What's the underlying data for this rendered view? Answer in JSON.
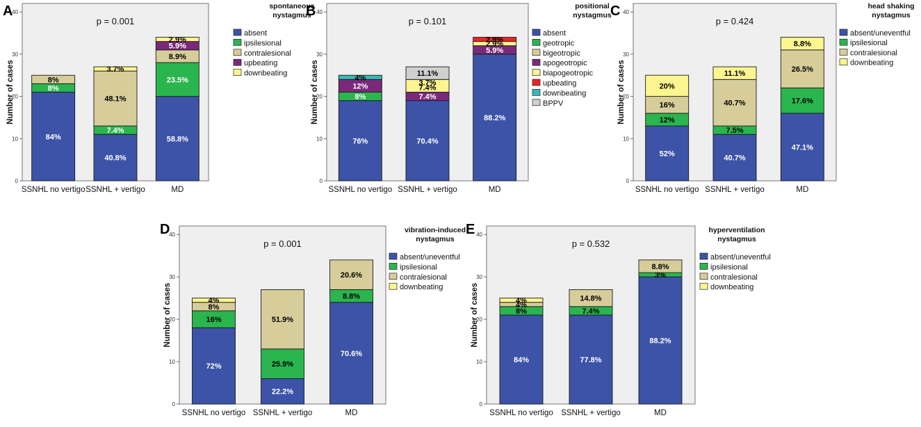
{
  "colors": {
    "plot_bg": "#efefef",
    "bar_stroke": "#1a1a1a",
    "absent": "#3c53a8",
    "ipsilesional": "#2bb54e",
    "geotropic": "#2bb54e",
    "contralesional": "#d6cd9a",
    "bigeotropic": "#d6cd9a",
    "upbeating_purple": "#7b2a7b",
    "apogeotropic": "#7b2a7b",
    "downbeating_yellow": "#fcf590",
    "biapogeotropic": "#fcf590",
    "upbeating_red": "#ec2427",
    "downbeating_teal": "#3ab9b7",
    "bppv": "#cfcfcf"
  },
  "chart_data": [
    {
      "panel_letter": "A",
      "type": "bar",
      "stacked": true,
      "title": "spontaneous\nnystagmus",
      "annotation": "p = 0.001",
      "ylabel": "Number of cases",
      "ylim": [
        0,
        42
      ],
      "yticks": [
        "0",
        "10",
        "20",
        "30",
        "40"
      ],
      "categories": [
        "SSNHL no vertigo",
        "SSNHL + vertigo",
        "MD"
      ],
      "series": [
        {
          "name": "absent",
          "color": "#3c53a8",
          "values": [
            21,
            11,
            20
          ],
          "labels": [
            "84%",
            "40.8%",
            "58.8%"
          ],
          "label_color": "#ffffff"
        },
        {
          "name": "ipsilesional",
          "color": "#2bb54e",
          "values": [
            2,
            2,
            8
          ],
          "labels": [
            "8%",
            "7.4%",
            "23.5%"
          ],
          "label_color": "#ffffff"
        },
        {
          "name": "contralesional",
          "color": "#d6cd9a",
          "values": [
            2,
            13,
            3
          ],
          "labels": [
            "8%",
            "48.1%",
            "8.9%"
          ],
          "label_color": "#000000"
        },
        {
          "name": "upbeating",
          "color": "#7b2a7b",
          "values": [
            0,
            0,
            2
          ],
          "labels": [
            "",
            "",
            "5.9%"
          ],
          "label_color": "#ffffff"
        },
        {
          "name": "downbeating",
          "color": "#fcf590",
          "values": [
            0,
            1,
            1
          ],
          "labels": [
            "",
            "3.7%",
            "2.9%"
          ],
          "label_color": "#000000"
        }
      ]
    },
    {
      "panel_letter": "B",
      "type": "bar",
      "stacked": true,
      "title": "positional\nnystagmus",
      "annotation": "p = 0.101",
      "ylabel": "Number of cases",
      "ylim": [
        0,
        42
      ],
      "yticks": [
        "0",
        "10",
        "20",
        "30",
        "40"
      ],
      "categories": [
        "SSNHL no vertigo",
        "SSNHL + vertigo",
        "MD"
      ],
      "series": [
        {
          "name": "absent",
          "color": "#3c53a8",
          "values": [
            19,
            19,
            30
          ],
          "labels": [
            "76%",
            "70.4%",
            "88.2%"
          ],
          "label_color": "#ffffff"
        },
        {
          "name": "geotropic",
          "color": "#2bb54e",
          "values": [
            2,
            0,
            0
          ],
          "labels": [
            "8%",
            "",
            ""
          ],
          "label_color": "#ffffff"
        },
        {
          "name": "bigeotropic",
          "color": "#d6cd9a",
          "values": [
            0,
            0,
            0
          ],
          "labels": [
            "",
            "",
            ""
          ],
          "label_color": "#000000"
        },
        {
          "name": "apogeotropic",
          "color": "#7b2a7b",
          "values": [
            3,
            2,
            2
          ],
          "labels": [
            "12%",
            "7.4%",
            "5.9%"
          ],
          "label_color": "#ffffff"
        },
        {
          "name": "biapogeotropic",
          "color": "#fcf590",
          "values": [
            0,
            3,
            1
          ],
          "labels": [
            "",
            "7.4%|3.7%",
            "2.9%"
          ],
          "label_color": "#000000"
        },
        {
          "name": "upbeating",
          "color": "#ec2427",
          "values": [
            0,
            0,
            1
          ],
          "labels": [
            "",
            "",
            "2.9%"
          ],
          "label_color": "#000000"
        },
        {
          "name": "downbeating",
          "color": "#3ab9b7",
          "values": [
            1,
            0,
            0
          ],
          "labels": [
            "4%",
            "",
            ""
          ],
          "label_color": "#000000"
        },
        {
          "name": "BPPV",
          "color": "#cfcfcf",
          "values": [
            0,
            3,
            0
          ],
          "labels": [
            "",
            "11.1%",
            ""
          ],
          "label_color": "#000000"
        }
      ]
    },
    {
      "panel_letter": "C",
      "type": "bar",
      "stacked": true,
      "title": "head shaking\nnystagmus",
      "annotation": "p = 0.424",
      "ylabel": "Number of cases",
      "ylim": [
        0,
        42
      ],
      "yticks": [
        "0",
        "10",
        "20",
        "30",
        "40"
      ],
      "categories": [
        "SSNHL no vertigo",
        "SSNHL + vertigo",
        "MD"
      ],
      "series": [
        {
          "name": "absent/uneventful",
          "color": "#3c53a8",
          "values": [
            13,
            11,
            16
          ],
          "labels": [
            "52%",
            "40.7%",
            "47.1%"
          ],
          "label_color": "#ffffff"
        },
        {
          "name": "ipsilesional",
          "color": "#2bb54e",
          "values": [
            3,
            2,
            6
          ],
          "labels": [
            "12%",
            "7.5%",
            "17.6%"
          ],
          "label_color": "#000000"
        },
        {
          "name": "contralesional",
          "color": "#d6cd9a",
          "values": [
            4,
            11,
            9
          ],
          "labels": [
            "16%",
            "40.7%",
            "26.5%"
          ],
          "label_color": "#000000"
        },
        {
          "name": "downbeating",
          "color": "#fcf590",
          "values": [
            5,
            3,
            3
          ],
          "labels": [
            "20%",
            "11.1%",
            "8.8%"
          ],
          "label_color": "#000000"
        }
      ]
    },
    {
      "panel_letter": "D",
      "type": "bar",
      "stacked": true,
      "title": "vibration-induced\nnystagmus",
      "annotation": "p = 0.001",
      "ylabel": "Number of cases",
      "ylim": [
        0,
        42
      ],
      "yticks": [
        "0",
        "10",
        "20",
        "30",
        "40"
      ],
      "categories": [
        "SSNHL no vertigo",
        "SSNHL + vertigo",
        "MD"
      ],
      "series": [
        {
          "name": "absent/uneventful",
          "color": "#3c53a8",
          "values": [
            18,
            6,
            24
          ],
          "labels": [
            "72%",
            "22.2%",
            "70.6%"
          ],
          "label_color": "#ffffff"
        },
        {
          "name": "ipsilesional",
          "color": "#2bb54e",
          "values": [
            4,
            7,
            3
          ],
          "labels": [
            "16%",
            "25.9%",
            "8.8%"
          ],
          "label_color": "#000000"
        },
        {
          "name": "contralesional",
          "color": "#d6cd9a",
          "values": [
            2,
            14,
            7
          ],
          "labels": [
            "8%",
            "51.9%",
            "20.6%"
          ],
          "label_color": "#000000"
        },
        {
          "name": "downbeating",
          "color": "#fcf590",
          "values": [
            1,
            0,
            0
          ],
          "labels": [
            "4%",
            "",
            ""
          ],
          "label_color": "#000000"
        }
      ]
    },
    {
      "panel_letter": "E",
      "type": "bar",
      "stacked": true,
      "title": "hyperventilation\nnystagmus",
      "annotation": "p = 0.532",
      "ylabel": "Number of cases",
      "ylim": [
        0,
        42
      ],
      "yticks": [
        "0",
        "10",
        "20",
        "30",
        "40"
      ],
      "categories": [
        "SSNHL no vertigo",
        "SSNHL + vertigo",
        "MD"
      ],
      "series": [
        {
          "name": "absent/uneventful",
          "color": "#3c53a8",
          "values": [
            21,
            21,
            30
          ],
          "labels": [
            "84%",
            "77.8%",
            "88.2%"
          ],
          "label_color": "#ffffff"
        },
        {
          "name": "ipsilesional",
          "color": "#2bb54e",
          "values": [
            2,
            2,
            1
          ],
          "labels": [
            "8%",
            "7.4%",
            "3%"
          ],
          "label_color": "#000000"
        },
        {
          "name": "contralesional",
          "color": "#d6cd9a",
          "values": [
            1,
            4,
            3
          ],
          "labels": [
            "4%",
            "14.8%",
            "8.8%"
          ],
          "label_color": "#000000"
        },
        {
          "name": "downbeating",
          "color": "#fcf590",
          "values": [
            1,
            0,
            0
          ],
          "labels": [
            "4%",
            "",
            ""
          ],
          "label_color": "#000000"
        }
      ]
    }
  ]
}
